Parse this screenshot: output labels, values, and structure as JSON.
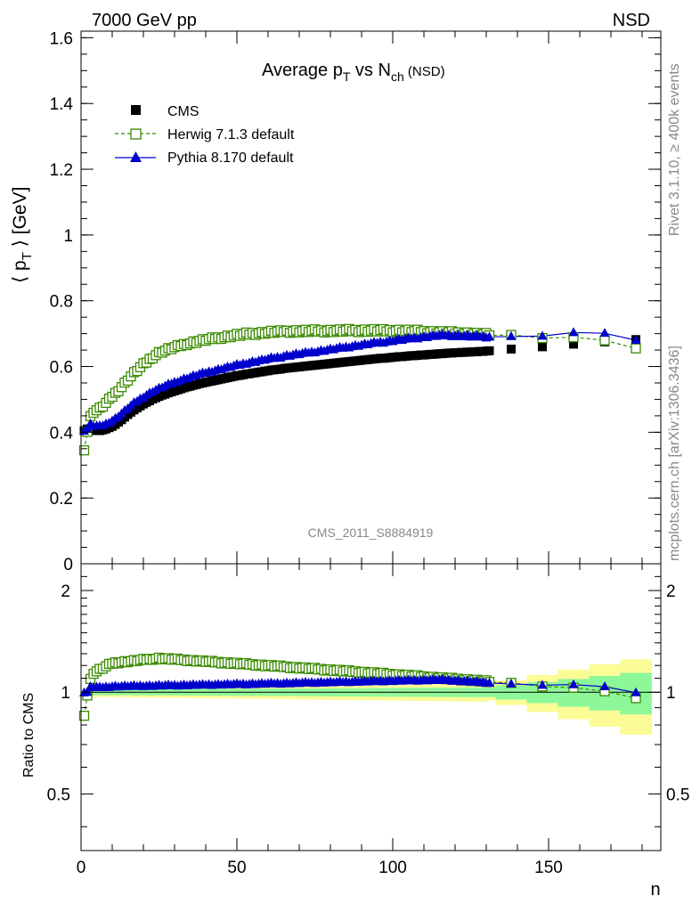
{
  "header": {
    "left": "7000 GeV pp",
    "right": "NSD"
  },
  "side_labels": {
    "rivet": "Rivet 3.1.10, ≥ 400k events",
    "mcplots": "mcplots.cern.ch [arXiv:1306.3436]"
  },
  "watermark": "CMS_2011_S8884919",
  "chart_data": [
    {
      "type": "scatter",
      "panel": "main",
      "title": {
        "base": "Average p",
        "sub1": "T",
        "mid": " vs N",
        "sub2": "ch",
        "tail": " (NSD)"
      },
      "ylabel": {
        "left": "⟨ p",
        "sub": "T",
        "right": " ⟩ [GeV]"
      },
      "xlim": [
        0,
        186
      ],
      "ylim": [
        0,
        1.62
      ],
      "xticks": [
        0,
        50,
        100,
        150
      ],
      "yticks": [
        {
          "v": 0,
          "label": "0"
        },
        {
          "v": 0.2,
          "label": "0.2"
        },
        {
          "v": 0.4,
          "label": "0.4"
        },
        {
          "v": 0.6,
          "label": "0.6"
        },
        {
          "v": 0.8,
          "label": "0.8"
        },
        {
          "v": 1.0,
          "label": "1"
        },
        {
          "v": 1.2,
          "label": "1.2"
        },
        {
          "v": 1.4,
          "label": "1.4"
        },
        {
          "v": 1.6,
          "label": "1.6"
        }
      ],
      "legend": "top-left",
      "legend_labels": {
        "cms": "CMS",
        "herwig": "Herwig 7.1.3 default",
        "pythia": "Pythia 8.170 default"
      },
      "cms_n": [
        1,
        2,
        3,
        4,
        5,
        6,
        7,
        8,
        9,
        10,
        11,
        12,
        13,
        14,
        15,
        16,
        17,
        18,
        19,
        20,
        21,
        22,
        23,
        24,
        25,
        26,
        27,
        28,
        29,
        30,
        31,
        32,
        33,
        34,
        35,
        36,
        37,
        38,
        39,
        40,
        41,
        42,
        43,
        44,
        45,
        46,
        47,
        48,
        49,
        50,
        51,
        52,
        53,
        54,
        55,
        56,
        57,
        58,
        59,
        60,
        61,
        62,
        63,
        64,
        65,
        66,
        67,
        68,
        69,
        70,
        71,
        72,
        73,
        74,
        75,
        76,
        77,
        78,
        79,
        80,
        81,
        82,
        83,
        84,
        85,
        86,
        87,
        88,
        89,
        90,
        91,
        92,
        93,
        94,
        95,
        96,
        97,
        98,
        99,
        100,
        101,
        102,
        103,
        104,
        105,
        106,
        107,
        108,
        109,
        110,
        111,
        112,
        113,
        114,
        115,
        116,
        117,
        118,
        119,
        120,
        121,
        122,
        123,
        124,
        125,
        126,
        127,
        128,
        129,
        130,
        131,
        138,
        148,
        158,
        168,
        178
      ],
      "cms_pt": [
        0.405,
        0.41,
        0.41,
        0.405,
        0.405,
        0.405,
        0.407,
        0.41,
        0.414,
        0.418,
        0.424,
        0.431,
        0.438,
        0.446,
        0.454,
        0.461,
        0.468,
        0.474,
        0.48,
        0.486,
        0.491,
        0.496,
        0.501,
        0.505,
        0.509,
        0.513,
        0.516,
        0.52,
        0.523,
        0.526,
        0.529,
        0.532,
        0.535,
        0.538,
        0.54,
        0.543,
        0.545,
        0.548,
        0.55,
        0.552,
        0.554,
        0.556,
        0.558,
        0.56,
        0.562,
        0.564,
        0.566,
        0.568,
        0.57,
        0.572,
        0.573,
        0.575,
        0.577,
        0.578,
        0.58,
        0.581,
        0.583,
        0.584,
        0.586,
        0.587,
        0.589,
        0.59,
        0.591,
        0.592,
        0.594,
        0.595,
        0.596,
        0.597,
        0.598,
        0.599,
        0.6,
        0.601,
        0.602,
        0.603,
        0.604,
        0.605,
        0.606,
        0.607,
        0.608,
        0.609,
        0.61,
        0.611,
        0.612,
        0.613,
        0.614,
        0.615,
        0.616,
        0.617,
        0.618,
        0.619,
        0.62,
        0.621,
        0.622,
        0.623,
        0.624,
        0.625,
        0.625,
        0.626,
        0.627,
        0.628,
        0.629,
        0.63,
        0.63,
        0.631,
        0.632,
        0.633,
        0.633,
        0.634,
        0.635,
        0.635,
        0.636,
        0.637,
        0.637,
        0.638,
        0.639,
        0.639,
        0.64,
        0.641,
        0.641,
        0.642,
        0.642,
        0.643,
        0.643,
        0.644,
        0.644,
        0.645,
        0.645,
        0.646,
        0.646,
        0.647,
        0.648,
        0.653,
        0.66,
        0.668,
        0.675,
        0.682
      ]
    },
    {
      "type": "scatter",
      "panel": "ratio",
      "ylabel": "Ratio to CMS",
      "xlabel": "n",
      "xlim": [
        0,
        186
      ],
      "ylim": [
        0.34,
        2.4
      ],
      "xticks": [
        0,
        50,
        100,
        150
      ],
      "yticks": [
        {
          "v": 0.5,
          "label": "0.5"
        },
        {
          "v": 1,
          "label": "1"
        },
        {
          "v": 2,
          "label": "2"
        }
      ]
    }
  ],
  "colors": {
    "cms": "#000000",
    "herwig": "#3a8a00",
    "pythia": "#0000cc",
    "band_inner": "#8ef79a",
    "band_outer": "#fbfc96",
    "sidetext": "#888888"
  }
}
